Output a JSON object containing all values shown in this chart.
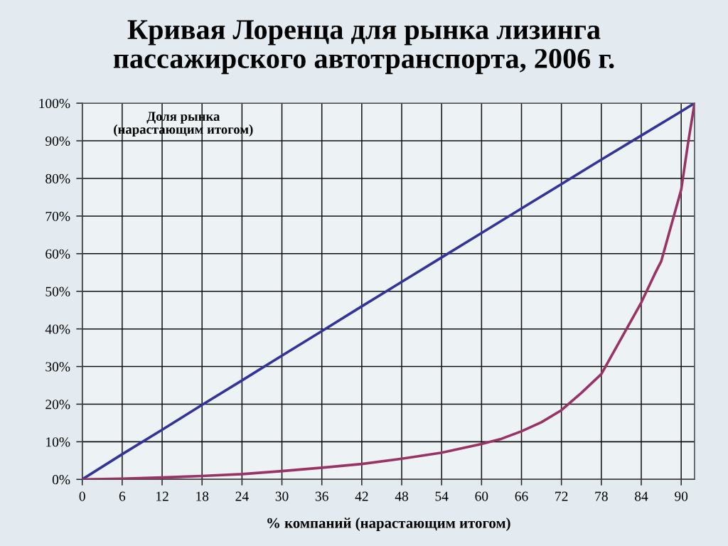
{
  "chart_data": {
    "type": "line",
    "title": "Кривая Лоренца для рынка лизинга\nпассажирского автотранспорта, 2006 г.",
    "xlabel": "% компаний (нарастающим итогом)",
    "ylabel": "Доля рынка\n(нарастающим итогом)",
    "series": [
      {
        "color": "#333399",
        "x": [
          0,
          6,
          12,
          18,
          24,
          30,
          36,
          42,
          48,
          54,
          60,
          66,
          72,
          78,
          84,
          90,
          92
        ],
        "values": [
          0,
          6.7,
          13.2,
          19.8,
          26.3,
          32.9,
          39.4,
          46,
          52.5,
          59,
          65.5,
          72,
          78.5,
          85,
          91.4,
          97.8,
          100
        ]
      },
      {
        "color": "#993366",
        "x": [
          0,
          6,
          12,
          18,
          24,
          30,
          36,
          42,
          48,
          54,
          60,
          63,
          66,
          69,
          72,
          75,
          78,
          81,
          84,
          86,
          87,
          90,
          91,
          92
        ],
        "values": [
          0,
          0.2,
          0.5,
          0.9,
          1.4,
          2.2,
          3.1,
          4.1,
          5.5,
          7.1,
          9.4,
          10.8,
          12.8,
          15.2,
          18.4,
          23,
          28,
          37.5,
          47,
          54.5,
          58,
          77,
          89,
          100
        ]
      }
    ],
    "xlim": [
      0,
      92
    ],
    "xticks": [
      0,
      6,
      12,
      18,
      24,
      30,
      36,
      42,
      48,
      54,
      60,
      66,
      72,
      78,
      84,
      90
    ],
    "ylim": [
      0,
      100
    ],
    "yticks": [
      {
        "value": 0,
        "label": "0%"
      },
      {
        "value": 10,
        "label": "10%"
      },
      {
        "value": 20,
        "label": "20%"
      },
      {
        "value": 30,
        "label": "30%"
      },
      {
        "value": 40,
        "label": "40%"
      },
      {
        "value": 50,
        "label": "50%"
      },
      {
        "value": 60,
        "label": "60%"
      },
      {
        "value": 70,
        "label": "70%"
      },
      {
        "value": 80,
        "label": "80%"
      },
      {
        "value": 90,
        "label": "90%"
      },
      {
        "value": 100,
        "label": "100%"
      }
    ],
    "grid": true
  }
}
